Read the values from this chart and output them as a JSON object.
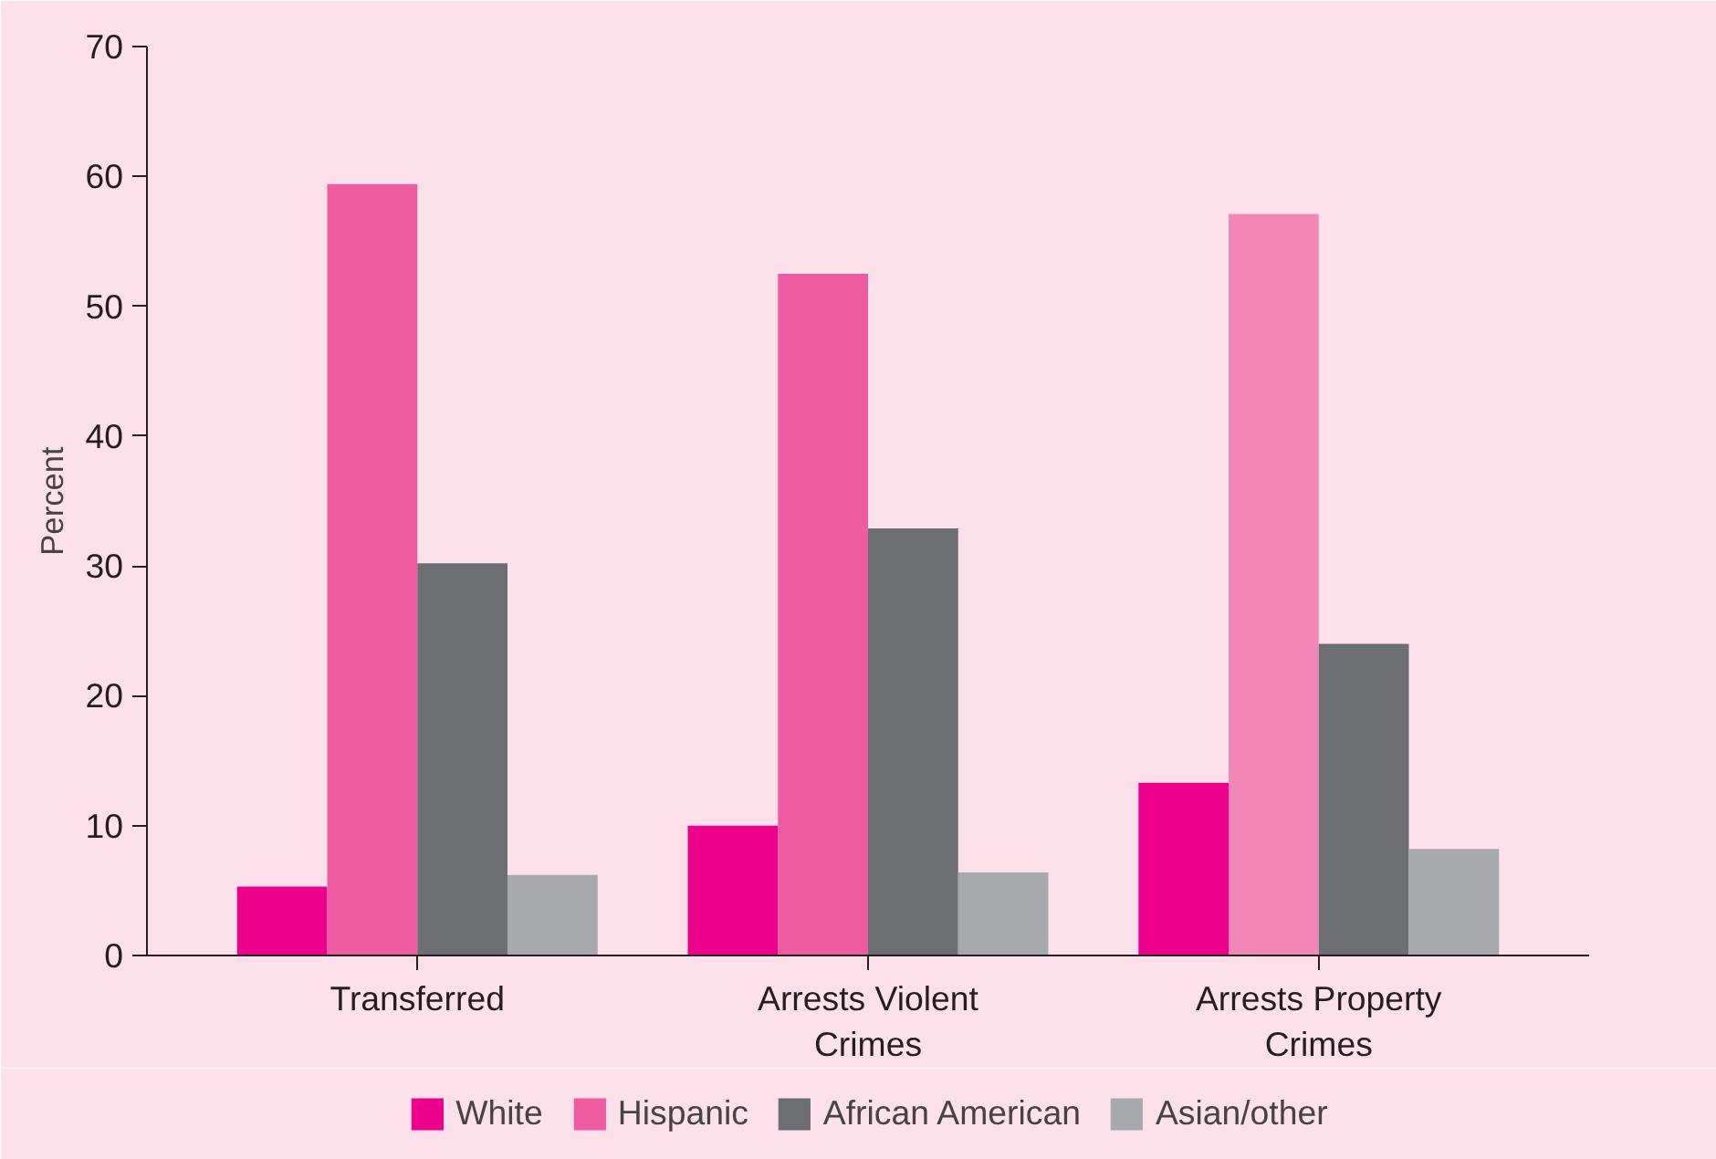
{
  "chart_data": {
    "type": "bar",
    "ylabel": "Percent",
    "categories": [
      "Transferred",
      "Arrests Violent Crimes",
      "Arrests Property Crimes"
    ],
    "series": [
      {
        "name": "White",
        "color": "#ec008c",
        "values": [
          5.3,
          10.0,
          13.3
        ]
      },
      {
        "name": "Hispanic",
        "color": "#ef5ba1",
        "colors": [
          "#ef5ba1",
          "#ef5ba1",
          "#f287b7"
        ],
        "values": [
          59.4,
          52.5,
          57.1
        ]
      },
      {
        "name": "African American",
        "color": "#6d6e71",
        "values": [
          30.2,
          32.9,
          24.0
        ]
      },
      {
        "name": "Asian/other",
        "color": "#a7a9ac",
        "values": [
          6.2,
          6.4,
          8.2
        ]
      }
    ],
    "ylim": [
      0,
      70
    ],
    "yticks": [
      0,
      10,
      20,
      30,
      40,
      50,
      60,
      70
    ],
    "grid": false,
    "legend": "bottom"
  }
}
